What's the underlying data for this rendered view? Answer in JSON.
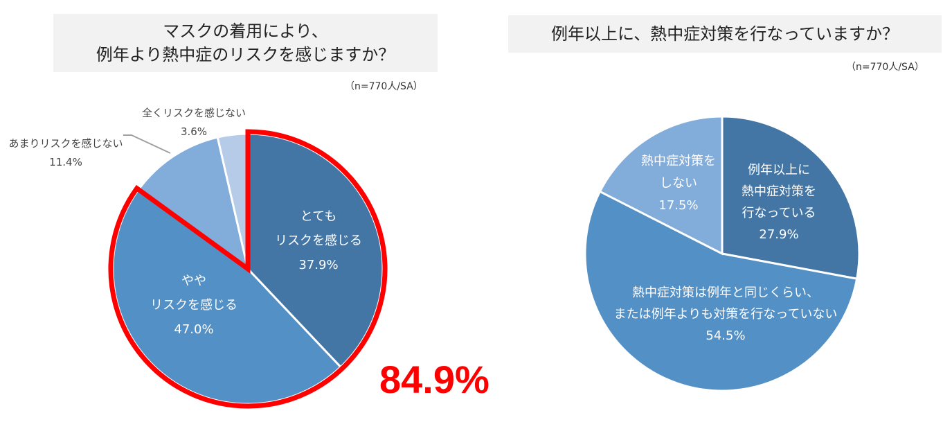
{
  "chart_data": [
    {
      "type": "pie",
      "title_line1": "マスクの着用により、",
      "title_line2": "例年より熱中症のリスクを感じますか？",
      "note": "（n=770人/SA）",
      "slices": [
        {
          "label_line1": "とても",
          "label_line2": "リスクを感じる",
          "value": 37.9,
          "value_label": "37.9%",
          "color": "#4375a5"
        },
        {
          "label_line1": "やや",
          "label_line2": "リスクを感じる",
          "value": 47.0,
          "value_label": "47.0%",
          "color": "#5390c6"
        },
        {
          "label_line1": "あまりリスクを感じない",
          "label_line2": "",
          "value": 11.4,
          "value_label": "11.4%",
          "color": "#82acd9"
        },
        {
          "label_line1": "全くリスクを感じない",
          "label_line2": "",
          "value": 3.6,
          "value_label": "3.6%",
          "color": "#b5cbe7"
        }
      ],
      "highlight_total": "84.9%",
      "highlight_color": "#ff0000"
    },
    {
      "type": "pie",
      "title": "例年以上に、熱中症対策を行なっていますか？",
      "note": "（n=770人/SA）",
      "slices": [
        {
          "label_line1": "例年以上に",
          "label_line2": "熱中症対策を",
          "label_line3": "行なっている",
          "value": 27.9,
          "value_label": "27.9%",
          "color": "#4375a5"
        },
        {
          "label_line1": "熱中症対策は例年と同じくらい、",
          "label_line2": "または例年よりも対策を行なっていない",
          "value": 54.5,
          "value_label": "54.5%",
          "color": "#5390c6"
        },
        {
          "label_line1": "熱中症対策を",
          "label_line2": "しない",
          "value": 17.5,
          "value_label": "17.5%",
          "color": "#82acd9"
        }
      ]
    }
  ]
}
